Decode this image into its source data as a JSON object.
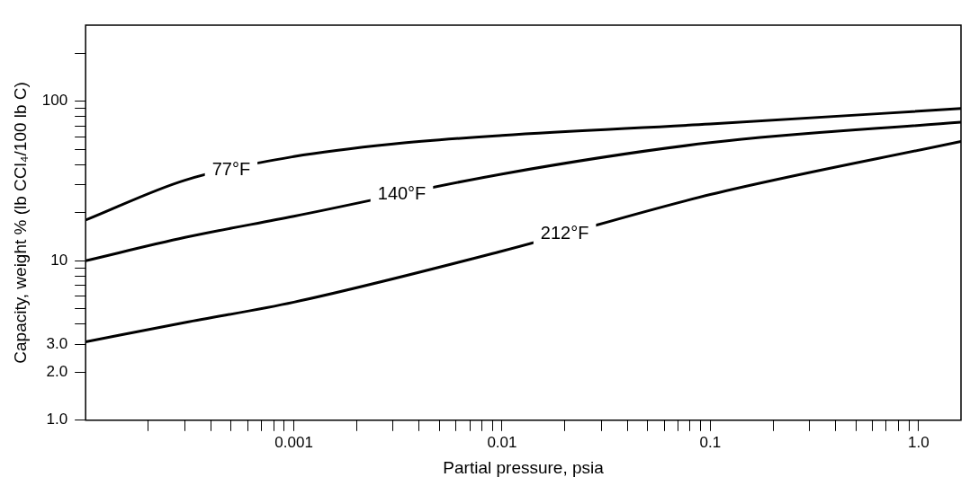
{
  "chart_data": {
    "type": "line",
    "xlabel": "Partial pressure, psia",
    "ylabel": "Capacity, weight % (lb CCl₄/100 lb C)",
    "log": "xy",
    "grid": false,
    "legend": false,
    "marker": "none",
    "line_style": "solid",
    "xlim": [
      0.0001,
      1.6
    ],
    "ylim": [
      1,
      300
    ],
    "xticks": [
      {
        "value": 0.0002,
        "label": null
      },
      {
        "value": 0.0003,
        "label": null
      },
      {
        "value": 0.0004,
        "label": null
      },
      {
        "value": 0.0005,
        "label": null
      },
      {
        "value": 0.0006,
        "label": null
      },
      {
        "value": 0.0007,
        "label": null
      },
      {
        "value": 0.0008,
        "label": null
      },
      {
        "value": 0.0009,
        "label": null
      },
      0.001,
      {
        "value": 0.002,
        "label": null
      },
      {
        "value": 0.003,
        "label": null
      },
      {
        "value": 0.004,
        "label": null
      },
      {
        "value": 0.005,
        "label": null
      },
      {
        "value": 0.006,
        "label": null
      },
      {
        "value": 0.007,
        "label": null
      },
      {
        "value": 0.008,
        "label": null
      },
      {
        "value": 0.009,
        "label": null
      },
      0.01,
      {
        "value": 0.02,
        "label": null
      },
      {
        "value": 0.03,
        "label": null
      },
      {
        "value": 0.04,
        "label": null
      },
      {
        "value": 0.05,
        "label": null
      },
      {
        "value": 0.06,
        "label": null
      },
      {
        "value": 0.07,
        "label": null
      },
      {
        "value": 0.08,
        "label": null
      },
      {
        "value": 0.09,
        "label": null
      },
      0.1,
      {
        "value": 0.2,
        "label": null
      },
      {
        "value": 0.3,
        "label": null
      },
      {
        "value": 0.4,
        "label": null
      },
      {
        "value": 0.5,
        "label": null
      },
      {
        "value": 0.6,
        "label": null
      },
      {
        "value": 0.7,
        "label": null
      },
      {
        "value": 0.8,
        "label": null
      },
      {
        "value": 0.9,
        "label": null
      },
      {
        "value": 1,
        "label": "1.0"
      }
    ],
    "yticks": [
      {
        "value": 1,
        "label": "1.0"
      },
      {
        "value": 2,
        "label": "2.0"
      },
      {
        "value": 3,
        "label": "3.0"
      },
      {
        "value": 4,
        "label": null
      },
      {
        "value": 5,
        "label": null
      },
      {
        "value": 6,
        "label": null
      },
      {
        "value": 7,
        "label": null
      },
      {
        "value": 8,
        "label": null
      },
      {
        "value": 9,
        "label": null
      },
      10,
      {
        "value": 20,
        "label": null
      },
      {
        "value": 30,
        "label": null
      },
      {
        "value": 40,
        "label": null
      },
      {
        "value": 50,
        "label": null
      },
      {
        "value": 60,
        "label": null
      },
      {
        "value": 70,
        "label": null
      },
      {
        "value": 80,
        "label": null
      },
      {
        "value": 90,
        "label": null
      },
      100,
      {
        "value": 200,
        "label": null
      }
    ],
    "series": [
      {
        "color": "#000000",
        "x": [
          0.0001,
          0.0003,
          0.001,
          0.003,
          0.01,
          0.1,
          1.6
        ],
        "values": [
          18,
          32,
          45,
          54,
          61,
          72,
          90
        ]
      },
      {
        "color": "#000000",
        "x": [
          0.0001,
          0.0003,
          0.001,
          0.01,
          0.1,
          1.6
        ],
        "values": [
          10,
          14,
          19,
          35,
          55,
          74
        ]
      },
      {
        "color": "#000000",
        "x": [
          0.0001,
          0.0003,
          0.001,
          0.01,
          0.1,
          1.6
        ],
        "values": [
          3.1,
          4.1,
          5.5,
          11.5,
          26,
          56
        ]
      }
    ],
    "annotations": [
      {
        "text": "77°F",
        "x": 0.0005,
        "y": 37
      },
      {
        "text": "140°F",
        "x": 0.0033,
        "y": 26
      },
      {
        "text": "212°F",
        "x": 0.02,
        "y": 14.7
      }
    ]
  }
}
